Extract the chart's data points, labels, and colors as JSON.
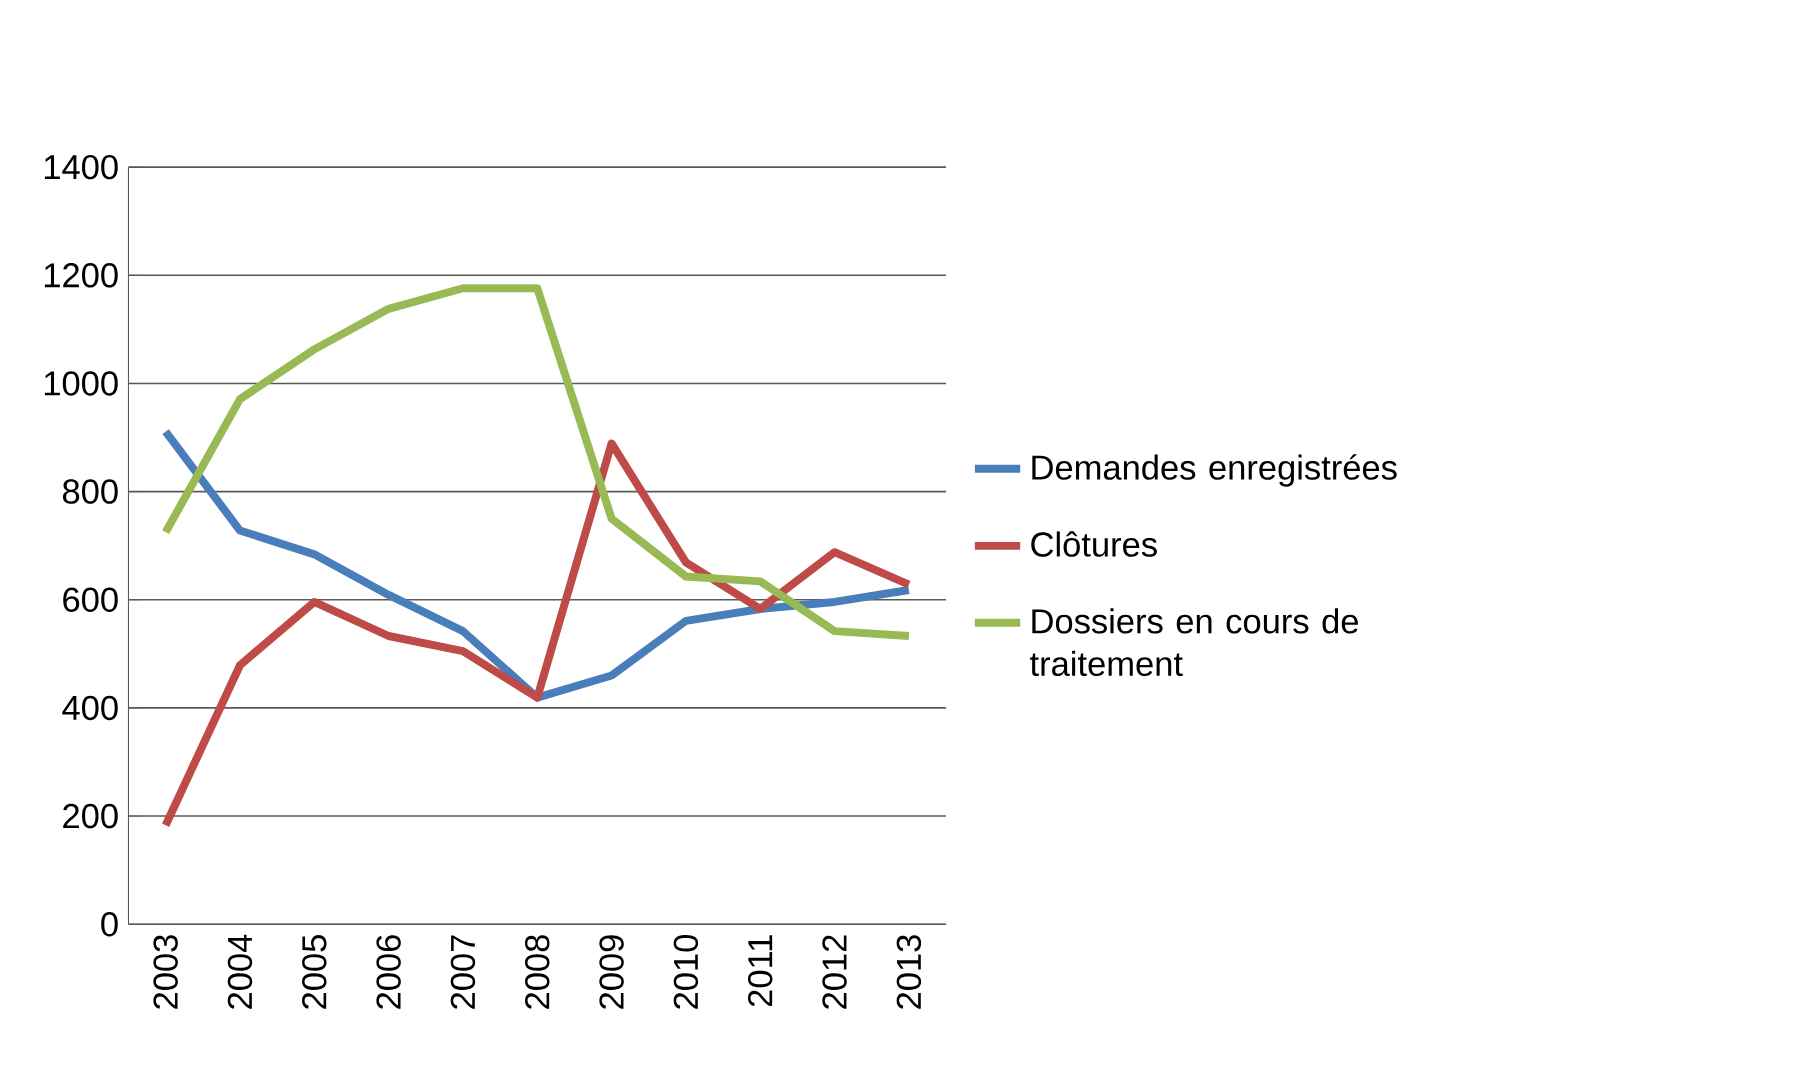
{
  "chart_data": {
    "type": "line",
    "categories": [
      "2003",
      "2004",
      "2005",
      "2006",
      "2007",
      "2008",
      "2009",
      "2010",
      "2011",
      "2012",
      "2013"
    ],
    "series": [
      {
        "name": "Demandes enregistrées",
        "color": "#4a7ebb",
        "values": [
          911,
          728,
          684,
          609,
          542,
          419,
          460,
          561,
          583,
          596,
          618
        ]
      },
      {
        "name": "Clôtures",
        "color": "#be4b48",
        "values": [
          183,
          479,
          596,
          533,
          505,
          419,
          889,
          669,
          583,
          688,
          628
        ]
      },
      {
        "name": "Dossiers en cours de traitement",
        "color": "#98b954",
        "values": [
          725,
          971,
          1063,
          1138,
          1176,
          1176,
          750,
          643,
          634,
          542,
          533
        ]
      }
    ],
    "ylim": [
      0,
      1400
    ],
    "yticks": [
      0,
      200,
      400,
      600,
      800,
      1000,
      1200,
      1400
    ],
    "grid": "y",
    "legend": "right",
    "marker": "none",
    "line_style": "solid"
  }
}
